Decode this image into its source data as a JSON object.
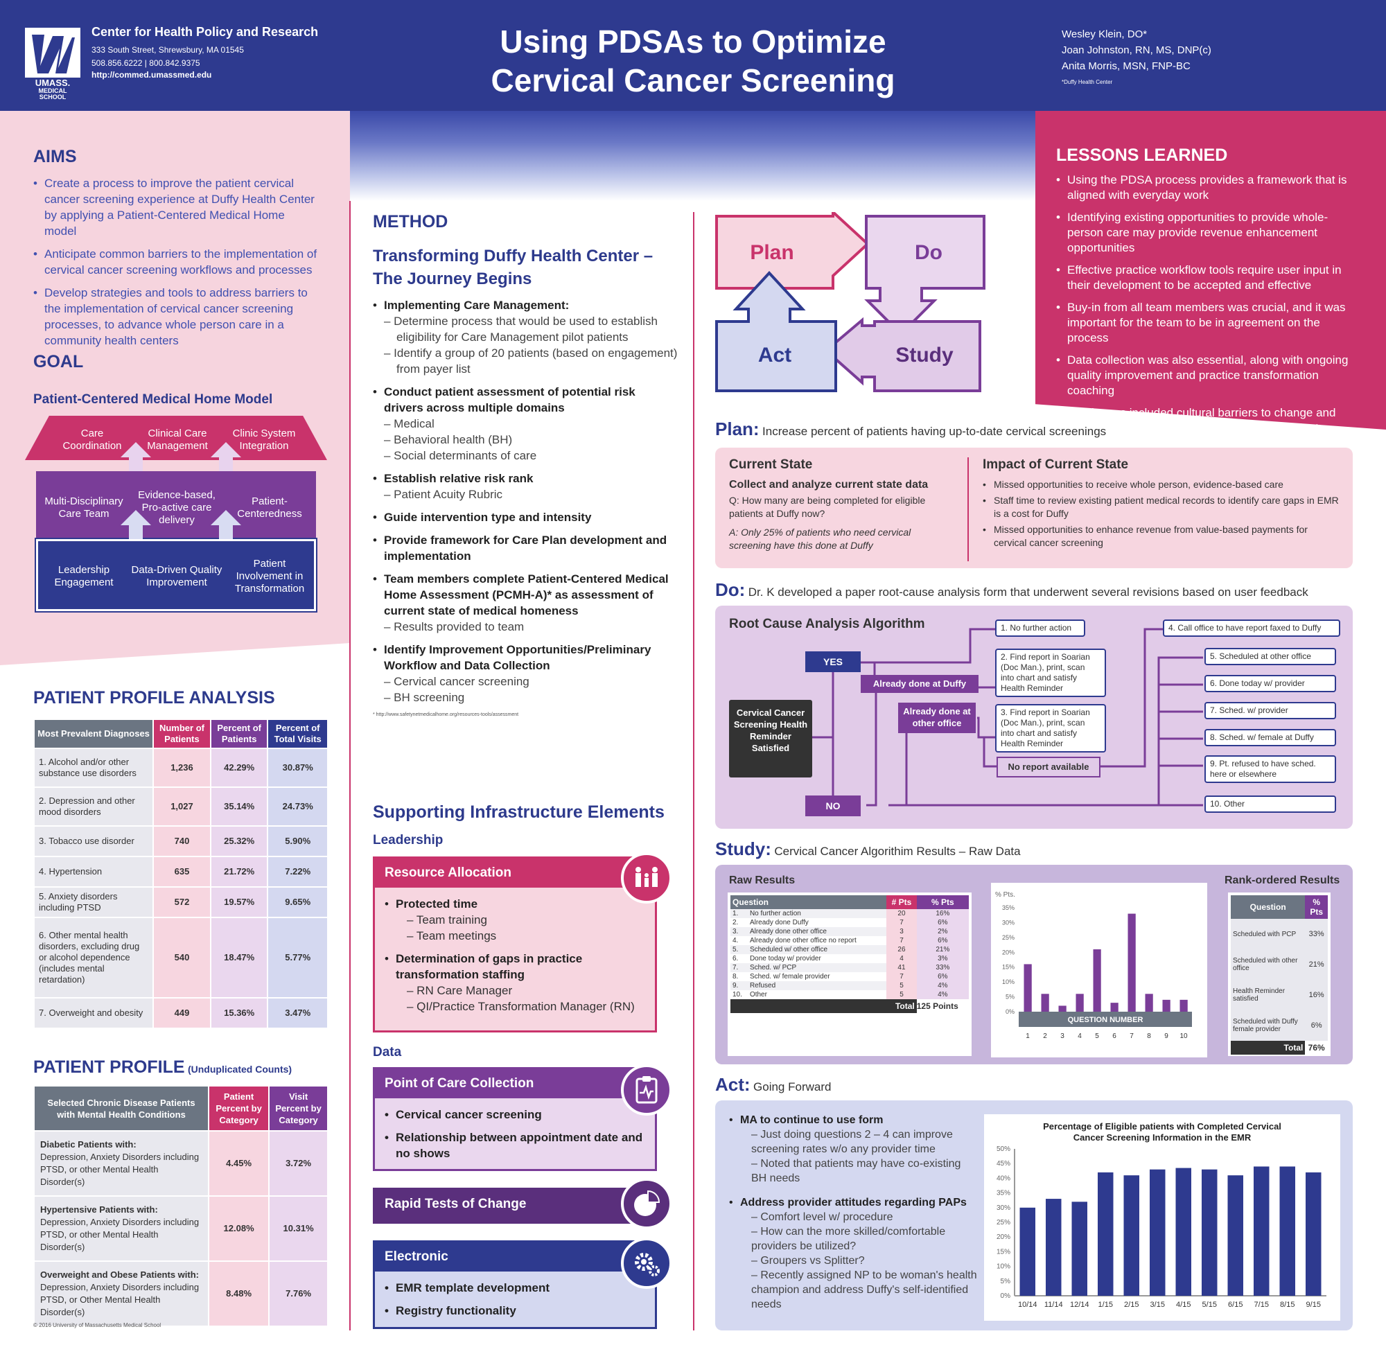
{
  "header": {
    "center_name": "Center for Health Policy and Research",
    "address": "333 South Street, Shrewsbury, MA 01545",
    "phone": "508.856.6222  |  800.842.9375",
    "url": "http://commed.umassmed.edu",
    "logo_text": "UMASS. MEDICAL SCHOOL",
    "title_line1": "Using PDSAs to Optimize",
    "title_line2": "Cervical Cancer Screening",
    "authors": [
      "Wesley Klein, DO*",
      "Joan Johnston, RN, MS, DNP(c)",
      "Anita Morris, MSN, FNP-BC"
    ],
    "author_note": "*Duffy Health Center"
  },
  "aims": {
    "heading": "AIMS",
    "items": [
      "Create a process to improve the patient cervical cancer screening experience at Duffy Health Center by applying a Patient-Centered Medical Home model",
      "Anticipate common barriers to the implementation of cervical cancer screening workflows and processes",
      "Develop strategies and tools to address barriers to the implementation of cervical cancer screening processes, to advance whole person care in a community health centers"
    ]
  },
  "goal": {
    "heading": "GOAL",
    "model_title": "Patient-Centered Medical Home Model",
    "roof": [
      "Care Coordination",
      "Clinical Care Management",
      "Clinic System Integration"
    ],
    "middle": [
      "Multi-Disciplinary Care Team",
      "Evidence-based, Pro-active care delivery",
      "Patient-Centeredness"
    ],
    "base": [
      "Leadership Engagement",
      "Data-Driven Quality Improvement",
      "Patient Involvement in Transformation"
    ]
  },
  "profile_analysis": {
    "heading": "PATIENT PROFILE ANALYSIS",
    "columns": [
      "Most Prevalent Diagnoses",
      "Number of Patients",
      "Percent of Patients",
      "Percent of Total Visits"
    ],
    "rows": [
      [
        "1. Alcohol and/or other substance use disorders",
        "1,236",
        "42.29%",
        "30.87%"
      ],
      [
        "2. Depression and other mood disorders",
        "1,027",
        "35.14%",
        "24.73%"
      ],
      [
        "3. Tobacco use disorder",
        "740",
        "25.32%",
        "5.90%"
      ],
      [
        "4. Hypertension",
        "635",
        "21.72%",
        "7.22%"
      ],
      [
        "5. Anxiety disorders including PTSD",
        "572",
        "19.57%",
        "9.65%"
      ],
      [
        "6. Other mental health disorders, excluding drug or alcohol dependence (includes mental retardation)",
        "540",
        "18.47%",
        "5.77%"
      ],
      [
        "7. Overweight and obesity",
        "449",
        "15.36%",
        "3.47%"
      ]
    ]
  },
  "profile": {
    "heading": "PATIENT PROFILE",
    "heading_note": "(Unduplicated Counts)",
    "columns": [
      "Selected Chronic Disease Patients with Mental Health Conditions",
      "Patient Percent by Category",
      "Visit Percent by Category"
    ],
    "rows": [
      {
        "title": "Diabetic Patients with:",
        "desc": "Depression, Anxiety Disorders including PTSD, or other Mental Health Disorder(s)",
        "p": "4.45%",
        "v": "3.72%"
      },
      {
        "title": "Hypertensive Patients with:",
        "desc": "Depression, Anxiety Disorders including PTSD, or other Mental Health Disorder(s)",
        "p": "12.08%",
        "v": "10.31%"
      },
      {
        "title": "Overweight and Obese Patients with:",
        "desc": "Depression, Anxiety Disorders including PTSD, or Other Mental Health Disorder(s)",
        "p": "8.48%",
        "v": "7.76%"
      }
    ],
    "copyright": "© 2016 University of Massachusetts Medical School"
  },
  "method": {
    "heading": "METHOD",
    "subtitle": "Transforming Duffy Health Center – The Journey Begins",
    "items": [
      {
        "h": "Implementing Care Management:",
        "s": [
          "– Determine process that would be used to establish eligibility for Care Management pilot patients",
          "– Identify a group of 20 patients (based on engagement) from payer list"
        ]
      },
      {
        "h": "Conduct patient assessment of potential risk drivers across multiple domains",
        "s": [
          "– Medical",
          "– Behavioral health (BH)",
          "– Social determinants of care"
        ]
      },
      {
        "h": "Establish relative risk rank",
        "s": [
          "– Patient Acuity Rubric"
        ]
      },
      {
        "h": "Guide intervention type and intensity",
        "s": []
      },
      {
        "h": "Provide framework for Care Plan development and implementation",
        "s": []
      },
      {
        "h": "Team members complete Patient-Centered Medical Home Assessment (PCMH-A)* as assessment of current state of medical homeness",
        "s": [
          "– Results provided to team"
        ]
      },
      {
        "h": "Identify Improvement Opportunities/Preliminary Workflow and Data Collection",
        "s": [
          "– Cervical cancer screening",
          "– BH screening"
        ]
      }
    ],
    "footnote": "* http://www.safetynetmedicalhome.org/resources-tools/assessment"
  },
  "infra": {
    "heading": "Supporting Infrastructure Elements",
    "leadership": "Leadership",
    "data": "Data",
    "resource": {
      "title": "Resource Allocation",
      "items": [
        {
          "h": "Protected time",
          "s": [
            "– Team training",
            "– Team meetings"
          ]
        },
        {
          "h": "Determination of gaps in practice transformation staffing",
          "s": [
            "– RN Care Manager",
            "– QI/Practice Transformation Manager (RN)"
          ]
        }
      ]
    },
    "poc": {
      "title": "Point of Care Collection",
      "items": [
        "Cervical cancer screening",
        "Relationship between appointment date and no shows"
      ]
    },
    "rapid": "Rapid Tests of Change",
    "electronic": {
      "title": "Electronic",
      "items": [
        "EMR template development",
        "Registry functionality"
      ]
    }
  },
  "pdsa": {
    "plan": "Plan",
    "do": "Do",
    "study": "Study",
    "act": "Act"
  },
  "plan": {
    "label": "Plan:",
    "text": "Increase percent of patients having up-to-date cervical screenings",
    "cs_title": "Current State",
    "cs_sub": "Collect and analyze current state data",
    "cs_q": "Q: How many are being completed for eligible patients at Duffy now?",
    "cs_a": "A: Only 25% of patients who need cervical screening have this done at Duffy",
    "impact_title": "Impact of Current State",
    "impact": [
      "Missed opportunities to receive whole person, evidence-based care",
      "Staff time to review existing patient medical records to identify care gaps in EMR is a cost for Duffy",
      "Missed opportunities to enhance revenue from value-based payments for cervical cancer screening"
    ]
  },
  "do": {
    "label": "Do:",
    "text": "Dr. K developed a paper root-cause analysis form that underwent several revisions based on user feedback",
    "rca_title": "Root Cause Analysis Algorithm",
    "start": "Cervical Cancer Screening Health Reminder Satisfied",
    "yes": "YES",
    "no": "NO",
    "done_duffy": "Already done at Duffy",
    "done_other": "Already done at other office",
    "no_report": "No report available",
    "o1": "1. No further action",
    "o2": "2. Find report in Soarian (Doc Man.), print, scan into chart and satisfy Health Reminder",
    "o3": "3. Find report in Soarian (Doc Man.), print, scan into chart and satisfy Health Reminder",
    "o4": "4. Call office to have report faxed to Duffy",
    "o5": "5. Scheduled at other office",
    "o6": "6. Done today w/ provider",
    "o7": "7. Sched. w/ provider",
    "o8": "8. Sched. w/ female at Duffy",
    "o9": "9. Pt. refused to have sched. here or elsewhere",
    "o10": "10. Other"
  },
  "study": {
    "label": "Study:",
    "text": "Cervical Cancer Algorithim Results – Raw Data",
    "raw_title": "Raw Results",
    "cols": [
      "Question",
      "# Pts",
      "% Pts"
    ],
    "rows": [
      [
        "1.",
        "No further action",
        "20",
        "16%"
      ],
      [
        "2.",
        "Already done Duffy",
        "7",
        "6%"
      ],
      [
        "3.",
        "Already done other office",
        "3",
        "2%"
      ],
      [
        "4.",
        "Already done other office no report",
        "7",
        "6%"
      ],
      [
        "5.",
        "Scheduled w/ other office",
        "26",
        "21%"
      ],
      [
        "6.",
        "Done today w/ provider",
        "4",
        "3%"
      ],
      [
        "7.",
        "Sched. w/ PCP",
        "41",
        "33%"
      ],
      [
        "8.",
        "Sched. w/ female provider",
        "7",
        "6%"
      ],
      [
        "9.",
        "Refused",
        "5",
        "4%"
      ],
      [
        "10.",
        "Other",
        "5",
        "4%"
      ]
    ],
    "total_label": "Total",
    "total_value": "125 Points",
    "rank_title": "Rank-ordered Results",
    "rank_cols": [
      "Question",
      "% Pts"
    ],
    "rank_rows": [
      [
        "Scheduled with PCP",
        "33%"
      ],
      [
        "Scheduled with other office",
        "21%"
      ],
      [
        "Health Reminder satisfied",
        "16%"
      ],
      [
        "Scheduled with Duffy female provider",
        "6%"
      ]
    ],
    "rank_total": "76%"
  },
  "act": {
    "label": "Act:",
    "text": "Going Forward",
    "items": [
      {
        "h": "MA to continue to use form",
        "s": [
          "– Just doing questions 2 – 4 can improve screening rates w/o any provider time",
          "– Noted that patients may have co-existing BH needs"
        ]
      },
      {
        "h": "Address provider attitudes regarding PAPs",
        "s": [
          "– Comfort level w/ procedure",
          "– How can the more skilled/comfortable providers be utilized?",
          "– Groupers vs Splitter?",
          "– Recently assigned NP to be woman's health champion and address Duffy's self-identified needs"
        ]
      }
    ]
  },
  "lessons": {
    "heading": "LESSONS LEARNED",
    "items": [
      "Using the PDSA process provides a framework that is aligned with everyday work",
      "Identifying existing opportunities to provide whole-person care may provide revenue enhancement opportunities",
      "Effective practice workflow tools require user input in their development to be accepted and effective",
      "Buy-in from all team members was crucial, and it was important for the team to be in agreement on the process",
      "Data collection was also essential, along with ongoing quality improvement and practice transformation coaching",
      "Challenges included cultural barriers to change and providing cancer screening for uninsured patients"
    ]
  },
  "chart_data": [
    {
      "type": "bar",
      "title": "",
      "ylabel": "% Pts.",
      "xlabel": "QUESTION NUMBER",
      "categories": [
        "1",
        "2",
        "3",
        "4",
        "5",
        "6",
        "7",
        "8",
        "9",
        "10"
      ],
      "values": [
        16,
        6,
        2,
        6,
        21,
        3,
        33,
        6,
        4,
        4
      ],
      "ylim": [
        0,
        35
      ],
      "yticks": [
        "0%",
        "5%",
        "10%",
        "15%",
        "20%",
        "25%",
        "30%",
        "35%"
      ],
      "color": "#7a3d98"
    },
    {
      "type": "bar",
      "title": "Percentage of Eligible patients with Completed Cervical Cancer Screening Information in the EMR",
      "categories": [
        "10/14",
        "11/14",
        "12/14",
        "1/15",
        "2/15",
        "3/15",
        "4/15",
        "5/15",
        "6/15",
        "7/15",
        "8/15",
        "9/15"
      ],
      "values": [
        30,
        33,
        32,
        42,
        41,
        43,
        43.5,
        43,
        41,
        44,
        44,
        42
      ],
      "ylim": [
        0,
        50
      ],
      "yticks": [
        "0%",
        "5%",
        "10%",
        "15%",
        "20%",
        "25%",
        "30%",
        "35%",
        "40%",
        "45%",
        "50%"
      ],
      "color": "#2e3a8f"
    }
  ]
}
